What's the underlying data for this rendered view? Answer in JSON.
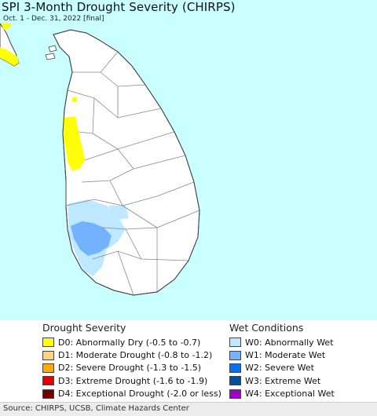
{
  "title": "SPI 3-Month Drought Severity (CHIRPS)",
  "subtitle": "Oct. 1 - Dec. 31, 2022 [final]",
  "colors": {
    "ocean": "#c9ffff",
    "land": "#ffffff",
    "district_border": "#888888",
    "coast_border": "#444444"
  },
  "legend": {
    "drought": {
      "heading": "Drought Severity",
      "items": [
        {
          "label": "D0: Abnormally Dry (-0.5 to -0.7)",
          "color": "#ffff00"
        },
        {
          "label": "D1: Moderate Drought (-0.8 to -1.2)",
          "color": "#fcd37f"
        },
        {
          "label": "D2: Severe Drought (-1.3 to -1.5)",
          "color": "#ffaa00"
        },
        {
          "label": "D3: Extreme Drought (-1.6 to -1.9)",
          "color": "#e60000"
        },
        {
          "label": "D4: Exceptional Drought (-2.0 or less)",
          "color": "#730000"
        }
      ]
    },
    "wet": {
      "heading": "Wet Conditions",
      "items": [
        {
          "label": "W0: Abnormally Wet",
          "color": "#bee8ff"
        },
        {
          "label": "W1: Moderate Wet",
          "color": "#73b2ff"
        },
        {
          "label": "W2: Severe Wet",
          "color": "#0070ff"
        },
        {
          "label": "W3: Extreme Wet",
          "color": "#0050a0"
        },
        {
          "label": "W4: Exceptional Wet",
          "color": "#a000c8"
        }
      ]
    }
  },
  "source": "Source: CHIRPS, UCSB, Climate Hazards Center"
}
